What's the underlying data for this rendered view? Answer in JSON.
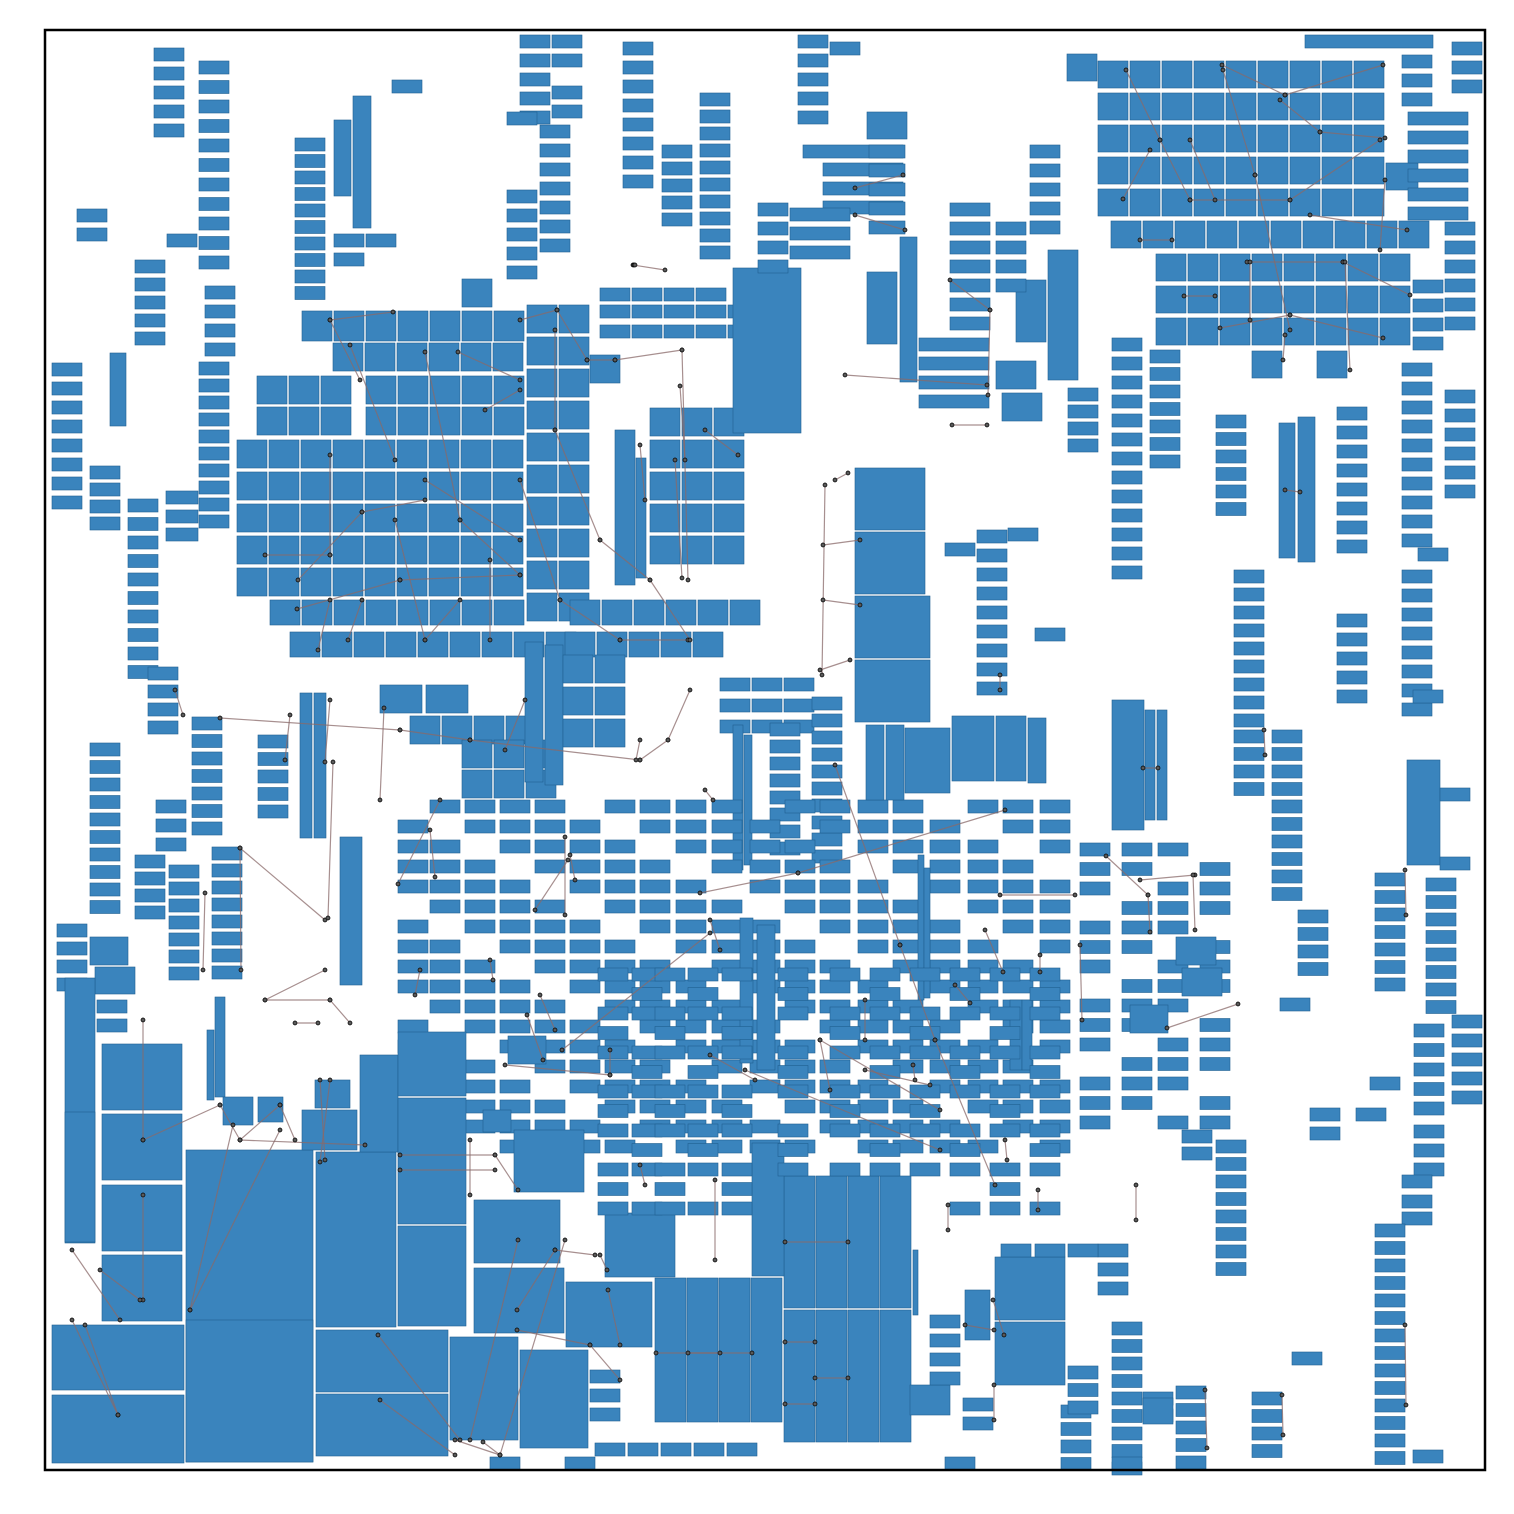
{
  "diagram": {
    "type": "block-placement-layout",
    "colors": {
      "block_fill": "#3a84bd",
      "block_stroke": "#1f5f8f",
      "net_line": "#8a6a6a",
      "pin_fill": "#5a5a5a",
      "frame": "#000000",
      "background": "#ffffff"
    },
    "labels": []
  }
}
